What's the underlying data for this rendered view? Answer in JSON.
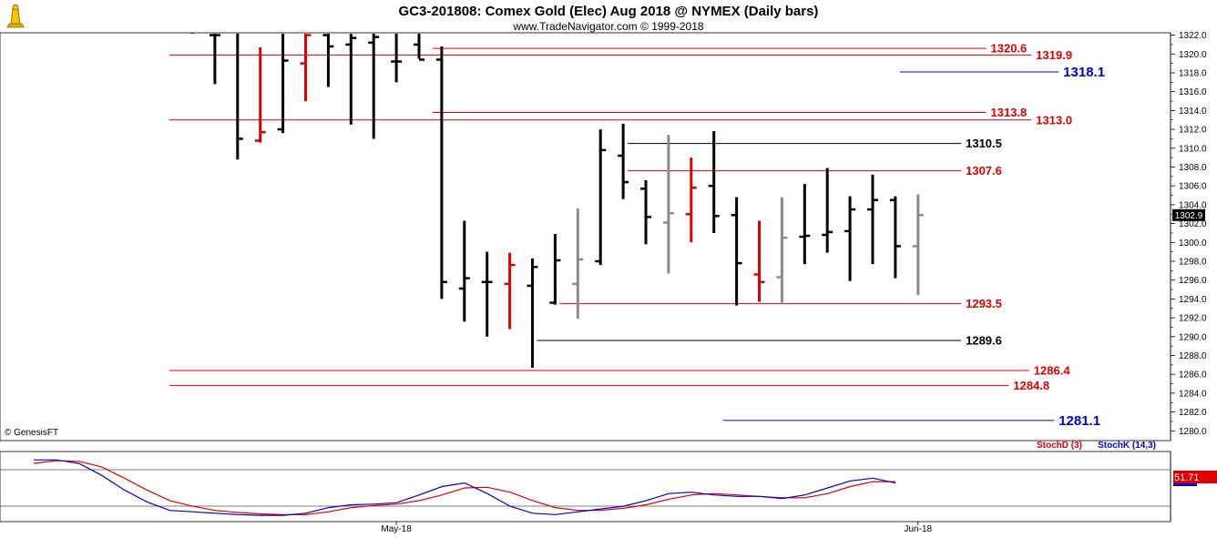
{
  "chart_data": {
    "type": "ohlc",
    "title": "GC3-201808:  Comex Gold (Elec) Aug 2018 @ NYMEX  (Daily bars)",
    "subtitle": "www.TradeNavigator.com © 1999-2018",
    "watermark": "© GenesisFT",
    "ylim": [
      1279,
      1323
    ],
    "y_ticks": [
      "1280.0",
      "1282.0",
      "1284.0",
      "1286.0",
      "1288.0",
      "1290.0",
      "1292.0",
      "1294.0",
      "1296.0",
      "1298.0",
      "1300.0",
      "1302.0",
      "1304.0",
      "1306.0",
      "1308.0",
      "1310.0",
      "1312.0",
      "1314.0",
      "1316.0",
      "1318.0",
      "1320.0",
      "1322.0"
    ],
    "x_ticks": [
      {
        "label": "May-18",
        "bar": 9
      },
      {
        "label": "Jun-18",
        "bar": 32
      }
    ],
    "current_price": "1302.9",
    "bars": [
      {
        "o": 1323.0,
        "h": 1324.0,
        "l": 1322.2,
        "c": 1322.5,
        "color": "black"
      },
      {
        "o": 1322.0,
        "h": 1323.5,
        "l": 1316.8,
        "c": 1322.0,
        "color": "black"
      },
      {
        "o": 1322.2,
        "h": 1324.0,
        "l": 1308.8,
        "c": 1311.0,
        "color": "black"
      },
      {
        "o": 1310.8,
        "h": 1320.7,
        "l": 1310.6,
        "c": 1311.7,
        "color": "red"
      },
      {
        "o": 1312.0,
        "h": 1324.0,
        "l": 1311.6,
        "c": 1319.3,
        "color": "black"
      },
      {
        "o": 1319.0,
        "h": 1322.5,
        "l": 1315.0,
        "c": 1322.0,
        "color": "red"
      },
      {
        "o": 1322.0,
        "h": 1323.0,
        "l": 1316.5,
        "c": 1320.8,
        "color": "black"
      },
      {
        "o": 1321.0,
        "h": 1324.0,
        "l": 1312.5,
        "c": 1321.7,
        "color": "black"
      },
      {
        "o": 1321.2,
        "h": 1324.0,
        "l": 1311.0,
        "c": 1321.8,
        "color": "black"
      },
      {
        "o": 1319.2,
        "h": 1324.0,
        "l": 1317.0,
        "c": 1319.2,
        "color": "black"
      },
      {
        "o": 1321.0,
        "h": 1324.0,
        "l": 1319.5,
        "c": 1319.4,
        "color": "black"
      },
      {
        "o": 1319.4,
        "h": 1320.8,
        "l": 1294.0,
        "c": 1295.8,
        "color": "black"
      },
      {
        "o": 1295.1,
        "h": 1302.3,
        "l": 1291.6,
        "c": 1296.2,
        "color": "black"
      },
      {
        "o": 1295.8,
        "h": 1299.0,
        "l": 1290.0,
        "c": 1295.8,
        "color": "black"
      },
      {
        "o": 1295.6,
        "h": 1298.9,
        "l": 1290.8,
        "c": 1297.6,
        "color": "red"
      },
      {
        "o": 1295.4,
        "h": 1298.3,
        "l": 1286.7,
        "c": 1297.4,
        "color": "black"
      },
      {
        "o": 1293.6,
        "h": 1300.9,
        "l": 1293.4,
        "c": 1298.1,
        "color": "black"
      },
      {
        "o": 1295.6,
        "h": 1303.6,
        "l": 1291.9,
        "c": 1298.2,
        "color": "gray"
      },
      {
        "o": 1298.0,
        "h": 1312.0,
        "l": 1297.6,
        "c": 1309.8,
        "color": "black"
      },
      {
        "o": 1309.2,
        "h": 1312.6,
        "l": 1304.6,
        "c": 1306.4,
        "color": "black"
      },
      {
        "o": 1305.7,
        "h": 1306.6,
        "l": 1299.8,
        "c": 1302.7,
        "color": "black"
      },
      {
        "o": 1302.1,
        "h": 1311.4,
        "l": 1296.7,
        "c": 1303.1,
        "color": "gray"
      },
      {
        "o": 1303.0,
        "h": 1309.0,
        "l": 1300.0,
        "c": 1305.8,
        "color": "red"
      },
      {
        "o": 1306.0,
        "h": 1311.8,
        "l": 1301.0,
        "c": 1302.8,
        "color": "black"
      },
      {
        "o": 1302.9,
        "h": 1304.8,
        "l": 1293.3,
        "c": 1297.8,
        "color": "black"
      },
      {
        "o": 1296.6,
        "h": 1302.3,
        "l": 1293.7,
        "c": 1295.8,
        "color": "red"
      },
      {
        "o": 1296.3,
        "h": 1304.8,
        "l": 1293.6,
        "c": 1300.5,
        "color": "gray"
      },
      {
        "o": 1300.6,
        "h": 1306.2,
        "l": 1297.7,
        "c": 1300.7,
        "color": "black"
      },
      {
        "o": 1300.8,
        "h": 1307.9,
        "l": 1298.9,
        "c": 1301.1,
        "color": "black"
      },
      {
        "o": 1301.2,
        "h": 1304.9,
        "l": 1295.9,
        "c": 1303.5,
        "color": "black"
      },
      {
        "o": 1303.5,
        "h": 1307.2,
        "l": 1297.7,
        "c": 1304.5,
        "color": "black"
      },
      {
        "o": 1304.5,
        "h": 1304.9,
        "l": 1296.2,
        "c": 1299.6,
        "color": "black"
      },
      {
        "o": 1299.6,
        "h": 1305.1,
        "l": 1294.4,
        "c": 1302.9,
        "color": "gray"
      }
    ],
    "levels": [
      {
        "value": 1320.6,
        "label": "1320.6",
        "color": "#e00000",
        "from_bar": 10.6,
        "to_bar": 35.0,
        "size": "normal"
      },
      {
        "value": 1319.9,
        "label": "1319.9",
        "color": "#e00000",
        "from_bar": -1,
        "to_bar": 37.0,
        "size": "normal"
      },
      {
        "value": 1318.1,
        "label": "1318.1",
        "color": "#0000cc",
        "from_bar": 31.2,
        "to_bar": 38.2,
        "size": "big"
      },
      {
        "value": 1313.8,
        "label": "1313.8",
        "color": "#e00000",
        "from_bar": 10.6,
        "to_bar": 35.0,
        "size": "normal"
      },
      {
        "value": 1313.0,
        "label": "1313.0",
        "color": "#e00000",
        "from_bar": -1,
        "to_bar": 37.0,
        "size": "normal"
      },
      {
        "value": 1310.5,
        "label": "1310.5",
        "color": "#000000",
        "from_bar": 19.2,
        "to_bar": 33.9,
        "size": "normal"
      },
      {
        "value": 1307.6,
        "label": "1307.6",
        "color": "#e00000",
        "from_bar": 19.2,
        "to_bar": 33.9,
        "size": "normal"
      },
      {
        "value": 1293.5,
        "label": "1293.5",
        "color": "#e00000",
        "from_bar": 16.2,
        "to_bar": 33.9,
        "size": "normal"
      },
      {
        "value": 1289.6,
        "label": "1289.6",
        "color": "#000000",
        "from_bar": 15.2,
        "to_bar": 33.9,
        "size": "normal"
      },
      {
        "value": 1286.4,
        "label": "1286.4",
        "color": "#e00000",
        "from_bar": -1,
        "to_bar": 36.9,
        "size": "normal"
      },
      {
        "value": 1284.8,
        "label": "1284.8",
        "color": "#e00000",
        "from_bar": -1,
        "to_bar": 36.0,
        "size": "normal"
      },
      {
        "value": 1281.1,
        "label": "1281.1",
        "color": "#0000cc",
        "from_bar": 23.4,
        "to_bar": 38.0,
        "size": "big"
      }
    ],
    "stochastic": {
      "legend_d": "StochD (3)",
      "legend_k": "StochK (14,3)",
      "value_label": "51.71",
      "ylim": [
        0,
        100
      ],
      "k": [
        88,
        88,
        83,
        66,
        45,
        28,
        16,
        14,
        12,
        10,
        9,
        9,
        12,
        20,
        24,
        25,
        27,
        38,
        50,
        55,
        40,
        22,
        12,
        10,
        14,
        18,
        22,
        30,
        40,
        42,
        38,
        36,
        36,
        33,
        38,
        48,
        58,
        62,
        55
      ],
      "d": [
        83,
        87,
        86,
        78,
        62,
        45,
        30,
        22,
        16,
        13,
        11,
        10,
        10,
        14,
        20,
        23,
        25,
        30,
        38,
        48,
        49,
        42,
        30,
        20,
        16,
        16,
        19,
        24,
        32,
        38,
        40,
        38,
        36,
        34,
        34,
        40,
        50,
        57,
        57
      ]
    }
  }
}
